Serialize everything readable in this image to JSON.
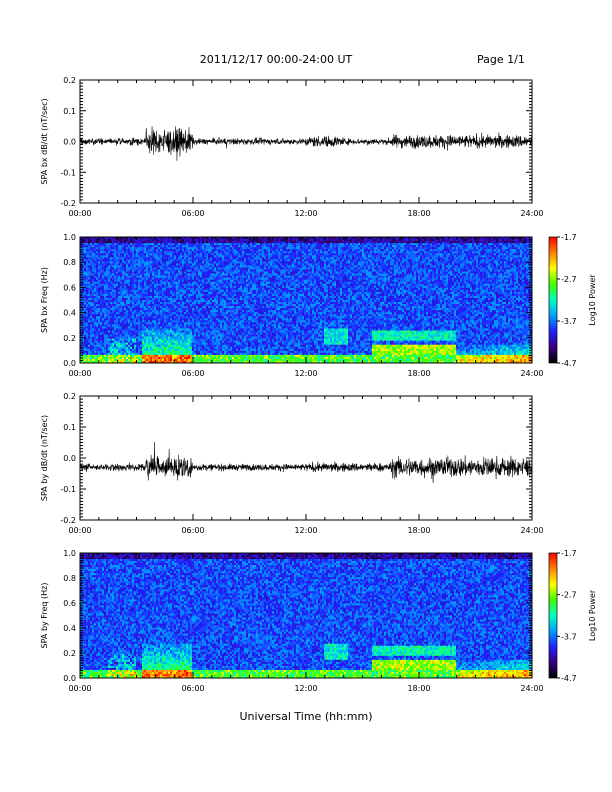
{
  "header": {
    "title": "2011/12/17  00:00-24:00 UT",
    "page": "Page 1/1"
  },
  "footer": {
    "xlabel": "Universal Time (hh:mm)"
  },
  "colorbar": {
    "label": "Log10 Power",
    "ticks": [
      "-1.7",
      "-2.7",
      "-3.7",
      "-4.7"
    ],
    "range": [
      -4.7,
      -1.7
    ],
    "colors": [
      "#000000",
      "#3a0080",
      "#2020ff",
      "#00a0ff",
      "#00ffc0",
      "#40ff00",
      "#ffff00",
      "#ff8000",
      "#ff0000"
    ]
  },
  "chart_data": [
    {
      "type": "line",
      "ylabel": "SPA bx dB/dt (nT/sec)",
      "x_ticks": [
        "00:00",
        "06:00",
        "12:00",
        "18:00",
        "24:00"
      ],
      "y_ticks": [
        "0.2",
        "0.1",
        "0.0",
        "-0.1",
        "-0.2"
      ],
      "ylim": [
        -0.2,
        0.2
      ],
      "xlim_hours": [
        0,
        24
      ],
      "baseline": 0.0,
      "activity": [
        {
          "start": 0,
          "end": 3.5,
          "amp": 0.015
        },
        {
          "start": 3.5,
          "end": 6.0,
          "amp": 0.06
        },
        {
          "start": 6.0,
          "end": 12.0,
          "amp": 0.014
        },
        {
          "start": 12.0,
          "end": 14.0,
          "amp": 0.025
        },
        {
          "start": 14.0,
          "end": 16.5,
          "amp": 0.014
        },
        {
          "start": 16.5,
          "end": 24.0,
          "amp": 0.03
        }
      ],
      "color": "#000000"
    },
    {
      "type": "heatmap",
      "ylabel": "SPA bx Freq (Hz)",
      "x_ticks": [
        "00:00",
        "06:00",
        "12:00",
        "18:00",
        "24:00"
      ],
      "y_ticks": [
        "1.0",
        "0.8",
        "0.6",
        "0.4",
        "0.2",
        "0.0"
      ],
      "ylim": [
        0,
        1.0
      ],
      "xlim_hours": [
        0,
        24
      ],
      "zlim": [
        -4.7,
        -1.7
      ]
    },
    {
      "type": "line",
      "ylabel": "SPA by dB/dt (nT/sec)",
      "x_ticks": [
        "00:00",
        "06:00",
        "12:00",
        "18:00",
        "24:00"
      ],
      "y_ticks": [
        "0.2",
        "0.1",
        "0.0",
        "-0.1",
        "-0.2"
      ],
      "ylim": [
        -0.2,
        0.2
      ],
      "xlim_hours": [
        0,
        24
      ],
      "baseline": -0.03,
      "activity": [
        {
          "start": 0,
          "end": 3.5,
          "amp": 0.016
        },
        {
          "start": 3.5,
          "end": 6.0,
          "amp": 0.045
        },
        {
          "start": 6.0,
          "end": 12.0,
          "amp": 0.015
        },
        {
          "start": 12.0,
          "end": 16.5,
          "amp": 0.02
        },
        {
          "start": 16.5,
          "end": 24.0,
          "amp": 0.045
        }
      ],
      "color": "#000000"
    },
    {
      "type": "heatmap",
      "ylabel": "SPA by Freq (Hz)",
      "x_ticks": [
        "00:00",
        "06:00",
        "12:00",
        "18:00",
        "24:00"
      ],
      "y_ticks": [
        "1.0",
        "0.8",
        "0.6",
        "0.4",
        "0.2",
        "0.0"
      ],
      "ylim": [
        0,
        1.0
      ],
      "xlim_hours": [
        0,
        24
      ],
      "zlim": [
        -4.7,
        -1.7
      ]
    }
  ]
}
